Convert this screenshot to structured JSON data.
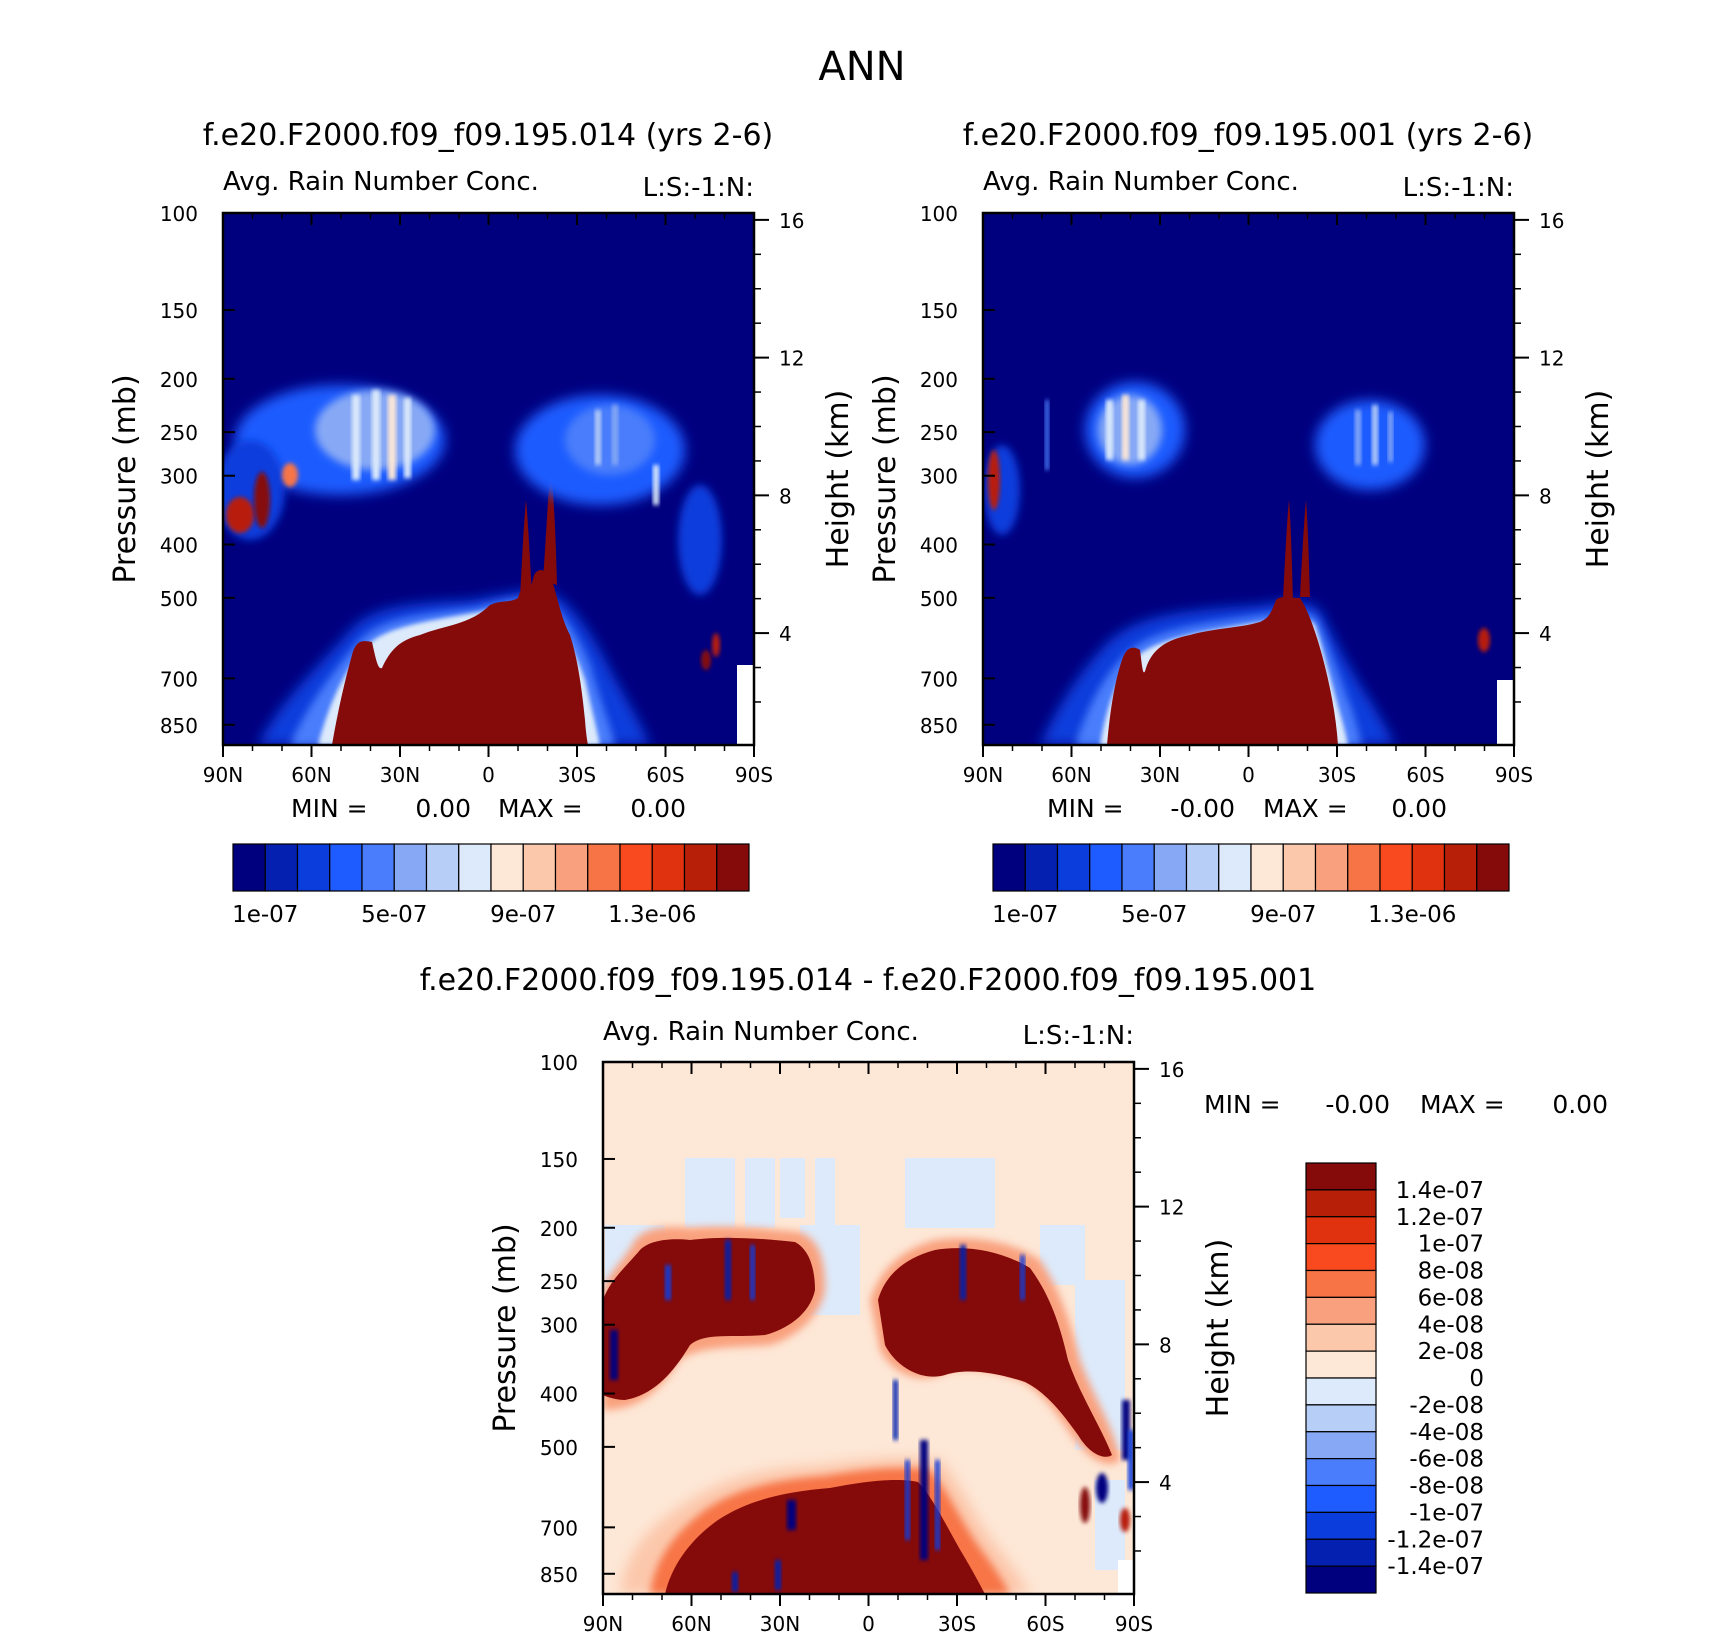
{
  "figure": {
    "season": "ANN",
    "variable": "Avg. Rain Number Conc.",
    "level_tag": "L:S:-1:N:"
  },
  "chart_data": [
    {
      "type": "heatmap",
      "panel": "top-left",
      "title": "f.e20.F2000.f09_f09.195.014 (yrs 2-6)",
      "subtitle": "Avg. Rain Number Conc.",
      "tag": "L:S:-1:N:",
      "xlabel": "",
      "ylabel": "Pressure (mb)",
      "y2label": "Height (km)",
      "x_ticks": [
        "90N",
        "60N",
        "30N",
        "0",
        "30S",
        "60S",
        "90S"
      ],
      "y_ticks": [
        "100",
        "150",
        "200",
        "250",
        "300",
        "400",
        "500",
        "700",
        "850"
      ],
      "y2_ticks": [
        "16",
        "12",
        "8",
        "4"
      ],
      "ylim": [
        100,
        925
      ],
      "y_scale": "log",
      "min_label": "MIN =",
      "min_value": "0.00",
      "max_label": "MAX =",
      "max_value": "0.00",
      "colorbar": {
        "orientation": "horizontal",
        "colors": [
          "#00007f",
          "#0320b0",
          "#0a3ddc",
          "#1f5cff",
          "#4a7dfb",
          "#87a9f5",
          "#b7cef6",
          "#dceafb",
          "#fde7d6",
          "#fcc8ac",
          "#f9a17e",
          "#f77447",
          "#f84a1e",
          "#e0320e",
          "#b81f08",
          "#850a0a"
        ],
        "labels": [
          "1e-07",
          "5e-07",
          "9e-07",
          "1.3e-06"
        ]
      },
      "features": {
        "background": "#00007f",
        "lower_core": {
          "lat_range": [
            "45N",
            "25S"
          ],
          "top_pressure": 525,
          "value": "max"
        },
        "upper_cloud_bands": [
          {
            "lat_range": [
              "65N",
              "15N"
            ],
            "pressure_range": [
              200,
              340
            ]
          },
          {
            "lat_range": [
              "5S",
              "60S"
            ],
            "pressure_range": [
              210,
              420
            ]
          }
        ]
      }
    },
    {
      "type": "heatmap",
      "panel": "top-right",
      "title": "f.e20.F2000.f09_f09.195.001 (yrs 2-6)",
      "subtitle": "Avg. Rain Number Conc.",
      "tag": "L:S:-1:N:",
      "xlabel": "",
      "ylabel": "Pressure (mb)",
      "y2label": "Height (km)",
      "x_ticks": [
        "90N",
        "60N",
        "30N",
        "0",
        "30S",
        "60S",
        "90S"
      ],
      "y_ticks": [
        "100",
        "150",
        "200",
        "250",
        "300",
        "400",
        "500",
        "700",
        "850"
      ],
      "y2_ticks": [
        "16",
        "12",
        "8",
        "4"
      ],
      "ylim": [
        100,
        925
      ],
      "y_scale": "log",
      "min_label": "MIN =",
      "min_value": "-0.00",
      "max_label": "MAX =",
      "max_value": "0.00",
      "colorbar": {
        "orientation": "horizontal",
        "colors": [
          "#00007f",
          "#0320b0",
          "#0a3ddc",
          "#1f5cff",
          "#4a7dfb",
          "#87a9f5",
          "#b7cef6",
          "#dceafb",
          "#fde7d6",
          "#fcc8ac",
          "#f9a17e",
          "#f77447",
          "#f84a1e",
          "#e0320e",
          "#b81f08",
          "#850a0a"
        ],
        "labels": [
          "1e-07",
          "5e-07",
          "9e-07",
          "1.3e-06"
        ]
      },
      "features": {
        "background": "#00007f",
        "lower_core": {
          "lat_range": [
            "45N",
            "20S"
          ],
          "top_pressure": 540,
          "value": "max"
        },
        "upper_cloud_bands": [
          {
            "lat_range": [
              "55N",
              "30N"
            ],
            "pressure_range": [
              215,
              320
            ]
          },
          {
            "lat_range": [
              "25S",
              "45S"
            ],
            "pressure_range": [
              220,
              330
            ]
          }
        ]
      }
    },
    {
      "type": "heatmap",
      "panel": "bottom-difference",
      "title": "f.e20.F2000.f09_f09.195.014 - f.e20.F2000.f09_f09.195.001",
      "subtitle": "Avg. Rain Number Conc.",
      "tag": "L:S:-1:N:",
      "xlabel": "",
      "ylabel": "Pressure (mb)",
      "y2label": "Height (km)",
      "x_ticks": [
        "90N",
        "60N",
        "30N",
        "0",
        "30S",
        "60S",
        "90S"
      ],
      "y_ticks": [
        "100",
        "150",
        "200",
        "250",
        "300",
        "400",
        "500",
        "700",
        "850"
      ],
      "y2_ticks": [
        "16",
        "12",
        "8",
        "4"
      ],
      "ylim": [
        100,
        925
      ],
      "y_scale": "log",
      "min_label": "MIN =",
      "min_value": "-0.00",
      "max_label": "MAX =",
      "max_value": "0.00",
      "colorbar": {
        "orientation": "vertical",
        "colors": [
          "#850a0a",
          "#b81f08",
          "#e0320e",
          "#f84a1e",
          "#f77447",
          "#f9a17e",
          "#fcc8ac",
          "#fde7d6",
          "#dceafb",
          "#b7cef6",
          "#87a9f5",
          "#4a7dfb",
          "#1f5cff",
          "#0a3ddc",
          "#0320b0",
          "#00007f"
        ],
        "labels": [
          "1.4e-07",
          "1.2e-07",
          "1e-07",
          "8e-08",
          "6e-08",
          "4e-08",
          "2e-08",
          "0",
          "-2e-08",
          "-4e-08",
          "-6e-08",
          "-8e-08",
          "-1e-07",
          "-1.2e-07",
          "-1.4e-07"
        ]
      },
      "features": {
        "background": "#fde7d6",
        "lower_positive": {
          "lat_range": [
            "60N",
            "30S"
          ],
          "top_pressure": 525,
          "value": "max"
        },
        "upper_positive_bands": [
          {
            "lat_range": [
              "60N",
              "20N"
            ],
            "pressure_range": [
              200,
              400
            ]
          },
          {
            "lat_range": [
              "0",
              "85S"
            ],
            "pressure_range": [
              210,
              520
            ]
          }
        ],
        "upper_slight_negative": {
          "lat_range": [
            "90N",
            "90S"
          ],
          "pressure_range": [
            150,
            200
          ],
          "value": "-2e-08"
        }
      }
    }
  ]
}
